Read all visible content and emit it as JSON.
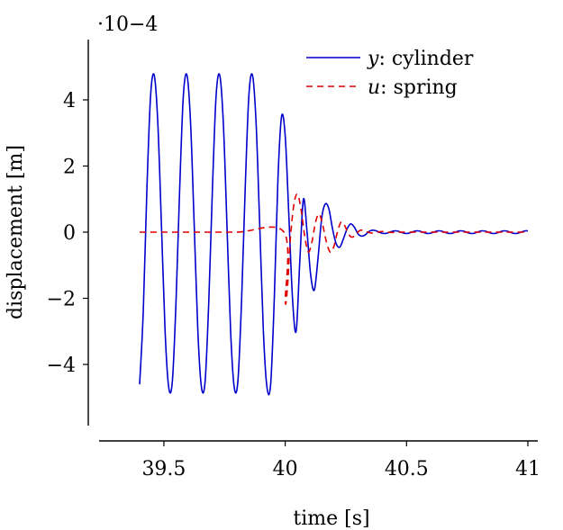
{
  "chart_data": {
    "type": "line",
    "title": "",
    "xlabel": "time [s]",
    "ylabel": "displacement [m]",
    "y_scale_note": "·10−4",
    "xlim": [
      39.4,
      41.0
    ],
    "ylim": [
      -5.8,
      5.8
    ],
    "xticks": [
      39.5,
      40,
      40.5,
      41
    ],
    "xtick_labels": [
      "39.5",
      "40",
      "40.5",
      "41"
    ],
    "yticks": [
      -4,
      -2,
      0,
      2,
      4
    ],
    "ytick_labels": [
      "−4",
      "−2",
      "0",
      "2",
      "4"
    ],
    "grid": false,
    "legend_position": "top-right",
    "series": [
      {
        "name": "y: cylinder",
        "legend_var": "y",
        "legend_rest": ": cylinder",
        "color": "#0000cc",
        "style": "solid",
        "x": [
          39.4,
          39.415,
          39.43,
          39.445,
          39.46,
          39.475,
          39.49,
          39.505,
          39.52,
          39.535,
          39.55,
          39.565,
          39.58,
          39.595,
          39.61,
          39.625,
          39.64,
          39.655,
          39.67,
          39.685,
          39.7,
          39.715,
          39.73,
          39.745,
          39.76,
          39.775,
          39.79,
          39.805,
          39.82,
          39.835,
          39.85,
          39.865,
          39.88,
          39.895,
          39.91,
          39.925,
          39.94,
          39.955,
          39.97,
          39.985,
          40.0,
          40.015,
          40.03,
          40.045,
          40.06,
          40.075,
          40.09,
          40.105,
          40.12,
          40.135,
          40.15,
          40.165,
          40.18,
          40.195,
          40.21,
          40.225,
          40.24,
          40.255,
          40.27,
          40.285,
          40.3,
          40.315,
          40.33,
          40.345,
          40.36,
          40.375,
          40.39,
          40.405,
          40.42,
          40.435,
          40.45,
          40.465,
          40.48,
          40.495,
          40.51,
          40.525,
          40.54,
          40.555,
          40.57,
          40.585,
          40.6,
          40.615,
          40.63,
          40.645,
          40.66,
          40.675,
          40.69,
          40.705,
          40.72,
          40.735,
          40.75,
          40.765,
          40.78,
          40.795,
          40.81,
          40.825,
          40.84,
          40.855,
          40.87,
          40.885,
          40.9,
          40.915,
          40.93,
          40.945,
          40.96,
          40.975,
          40.99,
          41.0
        ],
        "values": [
          -4.6,
          -2.4,
          1.3,
          4.1,
          4.75,
          3.3,
          0.2,
          -3.0,
          -4.7,
          -4.5,
          -2.1,
          1.3,
          4.1,
          4.75,
          3.3,
          0.2,
          -3.0,
          -4.7,
          -4.5,
          -2.1,
          1.3,
          4.1,
          4.75,
          3.3,
          0.2,
          -3.0,
          -4.7,
          -4.5,
          -2.1,
          1.3,
          4.1,
          4.75,
          3.3,
          0.2,
          -3.0,
          -4.7,
          -4.6,
          -2.0,
          1.6,
          3.5,
          2.9,
          0.5,
          -2.0,
          -3.0,
          -0.9,
          1.0,
          0.0,
          -1.3,
          -1.75,
          -0.8,
          0.4,
          0.85,
          0.7,
          0.1,
          -0.35,
          -0.45,
          -0.2,
          0.1,
          0.25,
          0.15,
          -0.05,
          -0.12,
          -0.08,
          0.02,
          0.06,
          0.04,
          -0.01,
          -0.04,
          -0.03,
          0.01,
          0.04,
          0.03,
          -0.01,
          -0.04,
          -0.03,
          0.01,
          0.04,
          0.03,
          -0.01,
          -0.04,
          -0.03,
          0.01,
          0.04,
          0.03,
          -0.01,
          -0.04,
          -0.03,
          0.01,
          0.04,
          0.03,
          -0.01,
          -0.04,
          -0.03,
          0.01,
          0.04,
          0.03,
          -0.01,
          -0.04,
          -0.03,
          0.01,
          0.04,
          0.03,
          -0.01,
          -0.04,
          -0.03,
          0.01,
          0.04,
          0.04
        ]
      },
      {
        "name": "u: spring",
        "legend_var": "u",
        "legend_rest": ": spring",
        "color": "#e00000",
        "style": "dashed",
        "x": [
          39.4,
          39.6,
          39.8,
          39.995,
          40.0,
          40.01,
          40.02,
          40.035,
          40.05,
          40.065,
          40.08,
          40.095,
          40.11,
          40.125,
          40.14,
          40.155,
          40.17,
          40.185,
          40.2,
          40.215,
          40.23,
          40.245,
          40.26,
          40.275,
          40.29,
          40.305,
          40.32,
          40.34,
          40.36,
          40.38,
          40.4,
          40.42,
          40.44,
          40.46,
          40.48,
          40.5,
          40.55,
          40.6,
          40.65,
          40.7,
          40.75,
          40.8,
          40.85,
          40.9,
          40.95,
          41.0
        ],
        "values": [
          0,
          0,
          0,
          0,
          -2.1,
          -1.6,
          -0.3,
          0.8,
          1.15,
          0.7,
          -0.1,
          -0.6,
          -0.3,
          0.3,
          0.55,
          0.2,
          -0.3,
          -0.6,
          -0.45,
          0.0,
          0.3,
          0.2,
          -0.05,
          -0.15,
          -0.08,
          0.04,
          0.06,
          0.0,
          -0.03,
          0.0,
          0.02,
          0.0,
          -0.01,
          0.0,
          0.0,
          0.0,
          0.0,
          0.0,
          0.0,
          0.0,
          0.0,
          0.0,
          0.0,
          0.0,
          0.0,
          0.0
        ]
      }
    ]
  }
}
